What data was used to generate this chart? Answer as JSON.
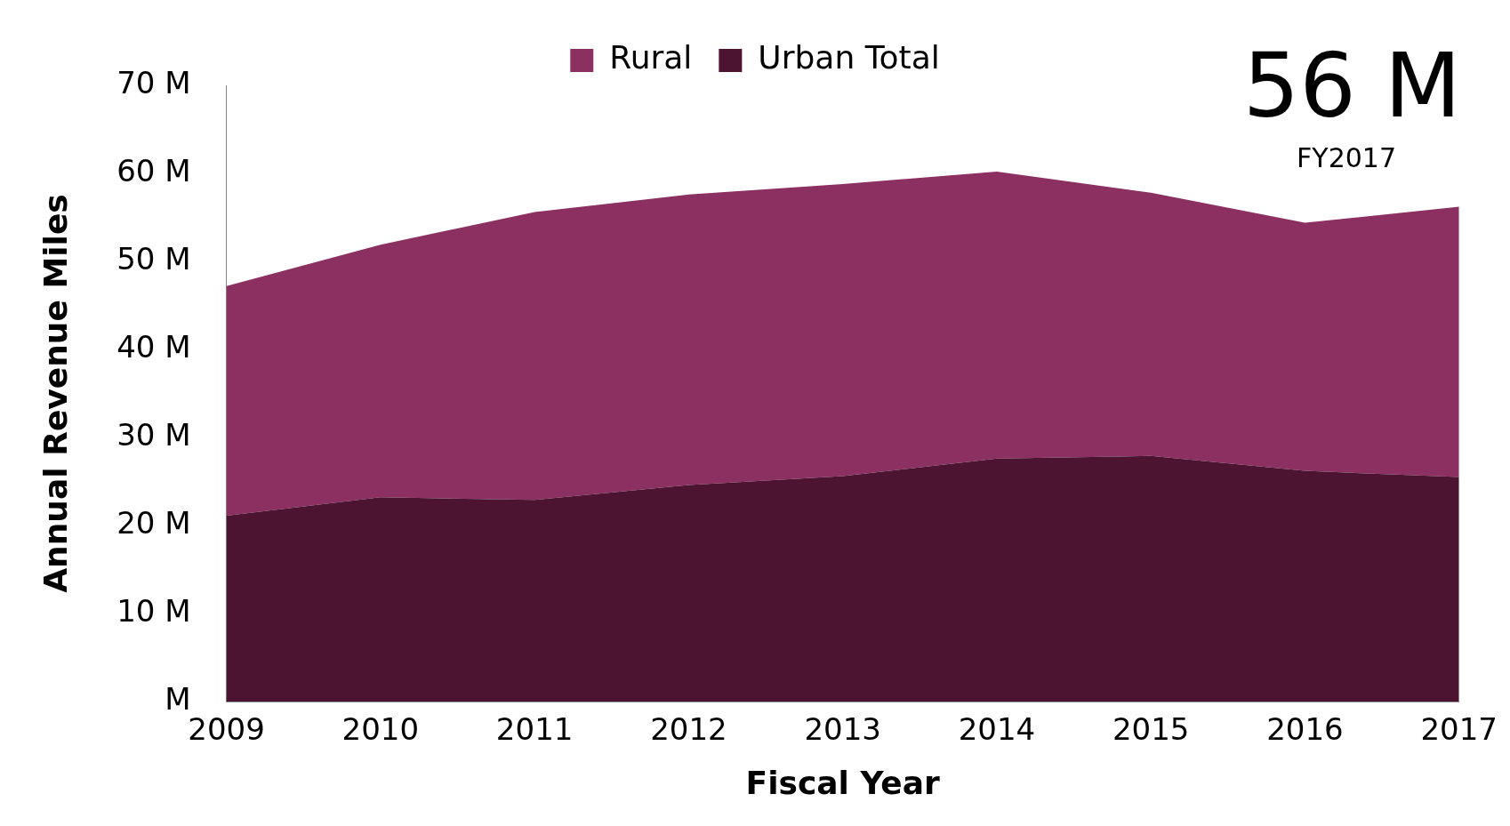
{
  "chart_data": {
    "type": "area",
    "stacked": true,
    "xlabel": "Fiscal Year",
    "ylabel": "Annual Revenue Miles",
    "categories": [
      "2009",
      "2010",
      "2011",
      "2012",
      "2013",
      "2014",
      "2015",
      "2016",
      "2017"
    ],
    "series": [
      {
        "name": "Urban Total",
        "color": "#4d1432",
        "values": [
          21.1,
          23.2,
          22.9,
          24.6,
          25.6,
          27.6,
          27.9,
          26.2,
          25.5
        ]
      },
      {
        "name": "Rural",
        "color": "#8b3060",
        "values": [
          26.1,
          28.7,
          32.7,
          33.0,
          33.2,
          32.6,
          29.9,
          28.2,
          30.7
        ]
      }
    ],
    "ylim": [
      0,
      70
    ],
    "yticks": [
      {
        "value": 0,
        "label": "M"
      },
      {
        "value": 10,
        "label": "10 M"
      },
      {
        "value": 20,
        "label": "20 M"
      },
      {
        "value": 30,
        "label": "30 M"
      },
      {
        "value": 40,
        "label": "40 M"
      },
      {
        "value": 50,
        "label": "50 M"
      },
      {
        "value": 60,
        "label": "60 M"
      },
      {
        "value": 70,
        "label": "70 M"
      }
    ],
    "grid": false,
    "legend": "top",
    "annotations": [
      "56 M",
      "FY2017"
    ]
  }
}
